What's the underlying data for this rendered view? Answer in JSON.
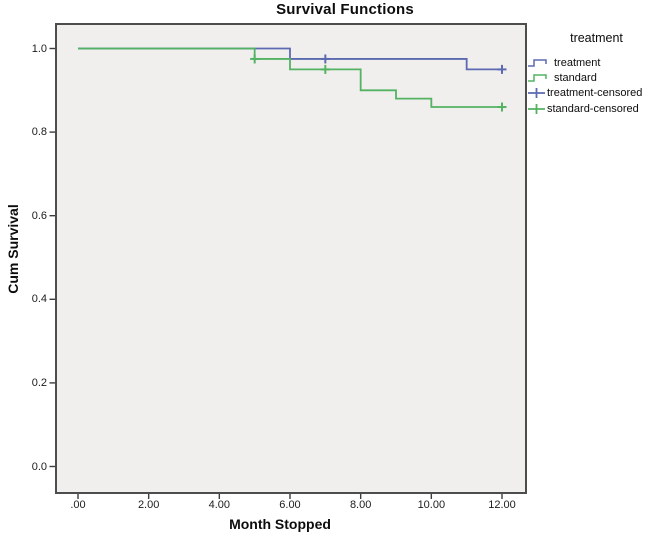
{
  "title": "Survival Functions",
  "axes": {
    "x": {
      "label": "Month Stopped",
      "tick_labels": [
        ".00",
        "2.00",
        "4.00",
        "6.00",
        "8.00",
        "10.00",
        "12.00"
      ],
      "tick_values": [
        0,
        2,
        4,
        6,
        8,
        10,
        12
      ]
    },
    "y": {
      "label": "Cum Survival",
      "tick_labels": [
        "1.0",
        "0.8",
        "0.6",
        "0.4",
        "0.2",
        "0.0"
      ],
      "tick_values": [
        1.0,
        0.8,
        0.6,
        0.4,
        0.2,
        0.0
      ]
    }
  },
  "legend": {
    "title": "treatment",
    "items": [
      {
        "label": "treatment",
        "color": "#5c6ab1",
        "marker": "step"
      },
      {
        "label": "standard",
        "color": "#53b363",
        "marker": "step"
      },
      {
        "label": "treatment-censored",
        "color": "#5c6ab1",
        "marker": "plus"
      },
      {
        "label": "standard-censored",
        "color": "#53b363",
        "marker": "plus"
      }
    ]
  },
  "chart_data": {
    "type": "line",
    "subtype": "kaplan_meier_step",
    "title": "Survival Functions",
    "xlabel": "Month Stopped",
    "ylabel": "Cum Survival",
    "xlim": [
      -0.6,
      12.65
    ],
    "ylim": [
      -0.065,
      1.06
    ],
    "grid": false,
    "legend_position": "right",
    "colors": {
      "treatment": "#5c6ab1",
      "standard": "#53b363",
      "plot_background": "#f0efed",
      "frame_border": "#4d4d4d",
      "tick": "#3c3c3c"
    },
    "series": [
      {
        "name": "treatment",
        "color": "#5c6ab1",
        "steps": [
          [
            0,
            1.0
          ],
          [
            6,
            0.975
          ],
          [
            11,
            0.95
          ]
        ],
        "end_x": 12,
        "censored": [
          [
            7,
            0.975
          ],
          [
            12,
            0.95
          ]
        ]
      },
      {
        "name": "standard",
        "color": "#53b363",
        "steps": [
          [
            0,
            1.0
          ],
          [
            5,
            0.975
          ],
          [
            6,
            0.95
          ],
          [
            8,
            0.9
          ],
          [
            9,
            0.88
          ],
          [
            10,
            0.86
          ]
        ],
        "end_x": 12,
        "censored": [
          [
            5,
            0.975
          ],
          [
            7,
            0.95
          ],
          [
            12,
            0.86
          ]
        ]
      }
    ]
  }
}
